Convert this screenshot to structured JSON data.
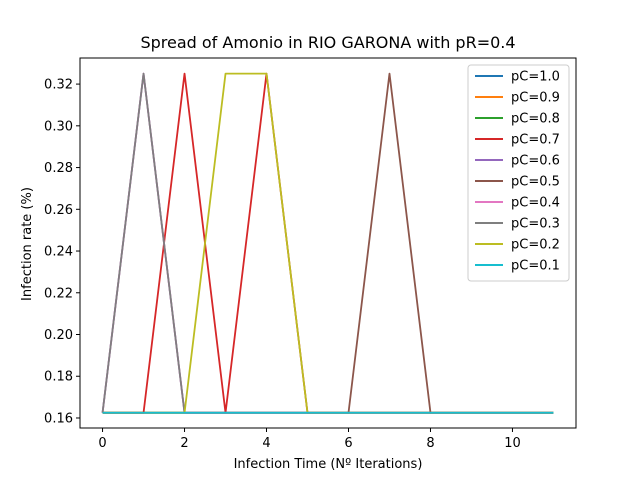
{
  "chart_data": {
    "type": "line",
    "title": "Spread of Amonio in RIO GARONA with pR=0.4",
    "xlabel": "Infection Time (Nº Iterations)",
    "ylabel": "Infection rate (%)",
    "xlim": [
      -0.55,
      11.55
    ],
    "ylim": [
      0.1552,
      0.3325
    ],
    "xticks": [
      0,
      2,
      4,
      6,
      8,
      10
    ],
    "yticks": [
      0.16,
      0.18,
      0.2,
      0.22,
      0.24,
      0.26,
      0.28,
      0.3,
      0.32
    ],
    "ytick_labels": [
      "0.16",
      "0.18",
      "0.20",
      "0.22",
      "0.24",
      "0.26",
      "0.28",
      "0.30",
      "0.32"
    ],
    "grid": false,
    "legend_position": "top-right",
    "x": [
      0,
      1,
      2,
      3,
      4,
      5,
      6,
      7,
      8,
      9,
      10,
      11
    ],
    "series": [
      {
        "name": "pC=1.0",
        "color": "#1f77b4",
        "values": [
          0.1625,
          0.1625,
          0.1625,
          0.1625,
          0.1625,
          0.1625,
          0.1625,
          0.1625,
          0.1625,
          0.1625,
          0.1625,
          0.1625
        ]
      },
      {
        "name": "pC=0.9",
        "color": "#ff7f0e",
        "values": [
          0.1625,
          0.1625,
          0.1625,
          0.1625,
          0.1625,
          0.1625,
          0.1625,
          0.1625,
          0.1625,
          0.1625,
          0.1625,
          0.1625
        ]
      },
      {
        "name": "pC=0.8",
        "color": "#2ca02c",
        "values": [
          0.1625,
          0.1625,
          0.1625,
          0.1625,
          0.1625,
          0.1625,
          0.1625,
          0.1625,
          0.1625,
          0.1625,
          0.1625,
          0.1625
        ]
      },
      {
        "name": "pC=0.7",
        "color": "#d62728",
        "values": [
          0.1625,
          0.1625,
          0.325,
          0.1625,
          0.325,
          0.1625,
          0.1625,
          0.1625,
          0.1625,
          0.1625,
          0.1625,
          0.1625
        ]
      },
      {
        "name": "pC=0.6",
        "color": "#9467bd",
        "values": [
          0.1625,
          0.325,
          0.1625,
          0.1625,
          0.1625,
          0.1625,
          0.1625,
          0.1625,
          0.1625,
          0.1625,
          0.1625,
          0.1625
        ]
      },
      {
        "name": "pC=0.5",
        "color": "#8c564b",
        "values": [
          0.1625,
          0.1625,
          0.1625,
          0.1625,
          0.1625,
          0.1625,
          0.1625,
          0.325,
          0.1625,
          0.1625,
          0.1625,
          0.1625
        ]
      },
      {
        "name": "pC=0.4",
        "color": "#e377c2",
        "values": [
          0.1625,
          0.325,
          0.1625,
          0.1625,
          0.1625,
          0.1625,
          0.1625,
          0.1625,
          0.1625,
          0.1625,
          0.1625,
          0.1625
        ]
      },
      {
        "name": "pC=0.3",
        "color": "#7f7f7f",
        "values": [
          0.1625,
          0.325,
          0.1625,
          0.1625,
          0.1625,
          0.1625,
          0.1625,
          0.1625,
          0.1625,
          0.1625,
          0.1625,
          0.1625
        ]
      },
      {
        "name": "pC=0.2",
        "color": "#bcbd22",
        "values": [
          0.1625,
          0.1625,
          0.1625,
          0.325,
          0.325,
          0.1625,
          0.1625,
          0.1625,
          0.1625,
          0.1625,
          0.1625,
          0.1625
        ]
      },
      {
        "name": "pC=0.1",
        "color": "#17becf",
        "values": [
          0.1625,
          0.1625,
          0.1625,
          0.1625,
          0.1625,
          0.1625,
          0.1625,
          0.1625,
          0.1625,
          0.1625,
          0.1625,
          0.1625
        ]
      }
    ]
  }
}
